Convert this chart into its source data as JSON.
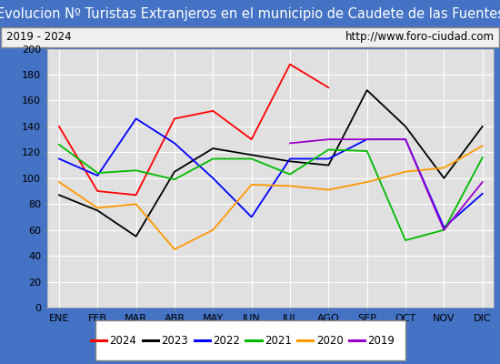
{
  "title": "Evolucion Nº Turistas Extranjeros en el municipio de Caudete de las Fuentes",
  "subtitle_left": "2019 - 2024",
  "subtitle_right": "http://www.foro-ciudad.com",
  "months": [
    "ENE",
    "FEB",
    "MAR",
    "ABR",
    "MAY",
    "JUN",
    "JUL",
    "AGO",
    "SEP",
    "OCT",
    "NOV",
    "DIC"
  ],
  "ylim": [
    0,
    200
  ],
  "yticks": [
    0,
    20,
    40,
    60,
    80,
    100,
    120,
    140,
    160,
    180,
    200
  ],
  "series": {
    "2024": {
      "color": "#ff0000",
      "values": [
        140,
        90,
        87,
        146,
        152,
        130,
        188,
        170,
        null,
        null,
        null,
        null
      ]
    },
    "2023": {
      "color": "#000000",
      "values": [
        87,
        75,
        55,
        105,
        123,
        118,
        113,
        110,
        168,
        140,
        100,
        140
      ]
    },
    "2022": {
      "color": "#0000ff",
      "values": [
        115,
        102,
        146,
        127,
        100,
        70,
        115,
        115,
        130,
        130,
        62,
        88
      ]
    },
    "2021": {
      "color": "#00bb00",
      "values": [
        126,
        104,
        106,
        99,
        115,
        115,
        103,
        122,
        121,
        52,
        60,
        116
      ]
    },
    "2020": {
      "color": "#ff9900",
      "values": [
        97,
        77,
        80,
        45,
        60,
        95,
        94,
        91,
        97,
        105,
        108,
        125
      ]
    },
    "2019": {
      "color": "#9900cc",
      "values": [
        null,
        null,
        null,
        null,
        null,
        null,
        127,
        130,
        130,
        130,
        60,
        97
      ]
    }
  },
  "title_bg_color": "#4472c4",
  "title_text_color": "#ffffff",
  "subtitle_bg_color": "#f0f0f0",
  "plot_bg_color": "#e0e0e0",
  "grid_color": "#ffffff",
  "outer_bg_color": "#4472c4",
  "title_fontsize": 10.5,
  "subtitle_fontsize": 8.5,
  "axis_fontsize": 8,
  "legend_fontsize": 8.5
}
